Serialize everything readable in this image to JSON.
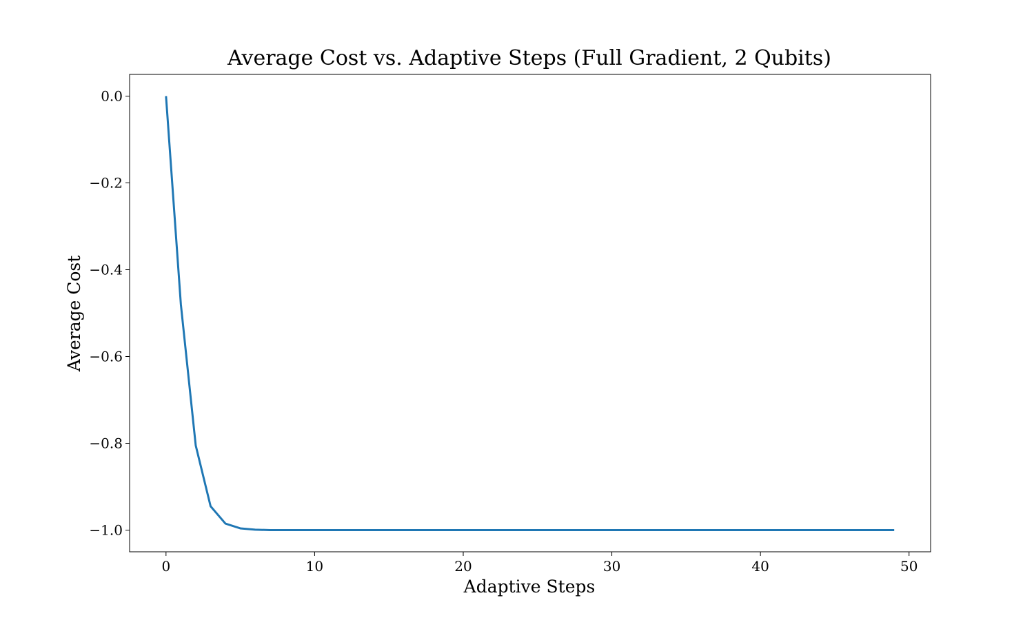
{
  "chart_data": {
    "type": "line",
    "title": "Average Cost vs. Adaptive Steps (Full Gradient, 2 Qubits)",
    "xlabel": "Adaptive Steps",
    "ylabel": "Average Cost",
    "xlim": [
      -2.45,
      51.45
    ],
    "ylim": [
      -1.05,
      0.05
    ],
    "xticks": [
      0,
      10,
      20,
      30,
      40,
      50
    ],
    "yticks": [
      0.0,
      -0.2,
      -0.4,
      -0.6,
      -0.8,
      -1.0
    ],
    "xtick_labels": [
      "0",
      "10",
      "20",
      "30",
      "40",
      "50"
    ],
    "ytick_labels": [
      "0.0",
      "−0.2",
      "−0.4",
      "−0.6",
      "−0.8",
      "−1.0"
    ],
    "grid": false,
    "series": [
      {
        "color": "#1f77b4",
        "x": [
          0,
          1,
          2,
          3,
          4,
          5,
          6,
          7,
          8,
          9,
          10,
          11,
          12,
          13,
          14,
          15,
          16,
          17,
          18,
          19,
          20,
          21,
          22,
          23,
          24,
          25,
          26,
          27,
          28,
          29,
          30,
          31,
          32,
          33,
          34,
          35,
          36,
          37,
          38,
          39,
          40,
          41,
          42,
          43,
          44,
          45,
          46,
          47,
          48,
          49
        ],
        "values": [
          0.0,
          -0.48,
          -0.805,
          -0.945,
          -0.985,
          -0.996,
          -0.999,
          -1.0,
          -1.0,
          -1.0,
          -1.0,
          -1.0,
          -1.0,
          -1.0,
          -1.0,
          -1.0,
          -1.0,
          -1.0,
          -1.0,
          -1.0,
          -1.0,
          -1.0,
          -1.0,
          -1.0,
          -1.0,
          -1.0,
          -1.0,
          -1.0,
          -1.0,
          -1.0,
          -1.0,
          -1.0,
          -1.0,
          -1.0,
          -1.0,
          -1.0,
          -1.0,
          -1.0,
          -1.0,
          -1.0,
          -1.0,
          -1.0,
          -1.0,
          -1.0,
          -1.0,
          -1.0,
          -1.0,
          -1.0,
          -1.0,
          -1.0
        ]
      }
    ]
  }
}
